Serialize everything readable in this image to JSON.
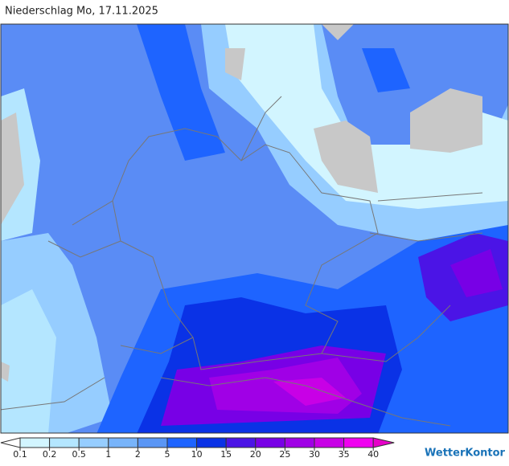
{
  "header": {
    "title": "Niederschlag Mo, 17.11.2025"
  },
  "legend": {
    "labels": [
      "0.1",
      "0.2",
      "0.5",
      "1",
      "2",
      "5",
      "10",
      "15",
      "20",
      "25",
      "30",
      "35",
      "40"
    ],
    "colors": [
      "#ffffff",
      "#d2f5ff",
      "#b4e6ff",
      "#96cdff",
      "#78b4fa",
      "#5a96f5",
      "#1e64ff",
      "#0a32e6",
      "#4b14e6",
      "#7800e6",
      "#a000e6",
      "#c800e6",
      "#f000f0",
      "#e600c8"
    ]
  },
  "logo": {
    "text": "WetterKontor"
  }
}
